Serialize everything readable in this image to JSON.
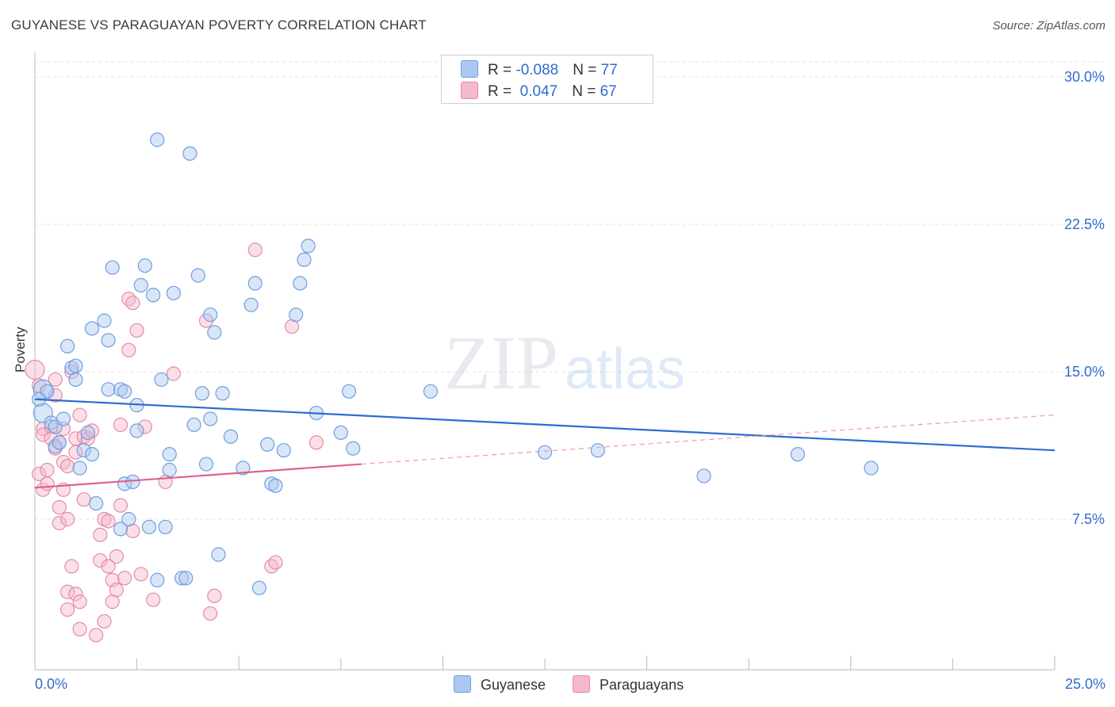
{
  "title": "GUYANESE VS PARAGUAYAN POVERTY CORRELATION CHART",
  "source": "Source: ZipAtlas.com",
  "watermark": {
    "zip": "ZIP",
    "atlas": "atlas"
  },
  "legend": {
    "rows": [
      {
        "r_label": "R = ",
        "r_value": "-0.088",
        "n_label": "N = ",
        "n_value": "77",
        "color": "#aac8f0"
      },
      {
        "r_label": "R = ",
        "r_value": " 0.047",
        "n_label": "N = ",
        "n_value": "67",
        "color": "#f5b8cc"
      }
    ]
  },
  "bottom_legend": [
    {
      "label": "Guyanese",
      "color": "#aac8f0"
    },
    {
      "label": "Paraguayans",
      "color": "#f5b8cc"
    }
  ],
  "chart_data": {
    "type": "scatter",
    "title": "GUYANESE VS PARAGUAYAN POVERTY CORRELATION CHART",
    "xlabel": "",
    "ylabel": "Poverty",
    "xlim": [
      0,
      25
    ],
    "ylim": [
      0,
      31
    ],
    "x_ticks": [
      "0.0%",
      "25.0%"
    ],
    "y_ticks": [
      {
        "value": 7.5,
        "label": "7.5%"
      },
      {
        "value": 15.0,
        "label": "15.0%"
      },
      {
        "value": 22.5,
        "label": "22.5%"
      },
      {
        "value": 30.0,
        "label": "30.0%"
      }
    ],
    "grid": "horizontal dashed",
    "legend_position": "top-center",
    "series": [
      {
        "name": "Guyanese",
        "color": "#6e9fe0",
        "fill": "#aac8f0",
        "trend": {
          "x0": 0,
          "y0": 13.6,
          "x1": 25,
          "y1": 11.0,
          "color": "#2f6ccf"
        },
        "points": [
          [
            0.2,
            12.9
          ],
          [
            0.2,
            14.1
          ],
          [
            0.4,
            12.4
          ],
          [
            0.5,
            12.2
          ],
          [
            0.5,
            11.2
          ],
          [
            0.6,
            11.4
          ],
          [
            0.7,
            12.6
          ],
          [
            0.8,
            16.3
          ],
          [
            0.9,
            15.2
          ],
          [
            1.0,
            14.6
          ],
          [
            1.0,
            15.3
          ],
          [
            1.1,
            10.1
          ],
          [
            1.2,
            11.0
          ],
          [
            1.3,
            11.9
          ],
          [
            1.4,
            10.8
          ],
          [
            1.4,
            17.2
          ],
          [
            1.5,
            8.3
          ],
          [
            1.7,
            17.6
          ],
          [
            1.8,
            16.6
          ],
          [
            1.9,
            20.3
          ],
          [
            1.8,
            14.1
          ],
          [
            2.1,
            14.1
          ],
          [
            2.2,
            14.0
          ],
          [
            2.1,
            7.0
          ],
          [
            2.2,
            9.3
          ],
          [
            2.3,
            7.5
          ],
          [
            2.4,
            9.4
          ],
          [
            2.5,
            12.0
          ],
          [
            2.5,
            13.3
          ],
          [
            2.6,
            19.4
          ],
          [
            2.7,
            20.4
          ],
          [
            2.8,
            7.1
          ],
          [
            2.9,
            18.9
          ],
          [
            3.0,
            4.4
          ],
          [
            3.0,
            26.8
          ],
          [
            3.1,
            14.6
          ],
          [
            3.2,
            7.1
          ],
          [
            3.3,
            10.0
          ],
          [
            3.3,
            10.8
          ],
          [
            3.4,
            19.0
          ],
          [
            3.6,
            4.5
          ],
          [
            3.7,
            4.5
          ],
          [
            3.8,
            26.1
          ],
          [
            3.9,
            12.3
          ],
          [
            4.0,
            19.9
          ],
          [
            4.1,
            13.9
          ],
          [
            4.2,
            10.3
          ],
          [
            4.3,
            17.9
          ],
          [
            4.3,
            12.6
          ],
          [
            4.4,
            17.0
          ],
          [
            4.5,
            5.7
          ],
          [
            4.6,
            13.9
          ],
          [
            4.8,
            11.7
          ],
          [
            5.1,
            10.1
          ],
          [
            5.3,
            18.4
          ],
          [
            5.4,
            19.5
          ],
          [
            5.5,
            4.0
          ],
          [
            5.7,
            11.3
          ],
          [
            5.8,
            9.3
          ],
          [
            5.9,
            9.2
          ],
          [
            6.1,
            11.0
          ],
          [
            6.4,
            17.9
          ],
          [
            6.5,
            19.5
          ],
          [
            6.6,
            20.7
          ],
          [
            6.7,
            21.4
          ],
          [
            6.9,
            12.9
          ],
          [
            7.5,
            11.9
          ],
          [
            7.7,
            14.0
          ],
          [
            7.8,
            11.1
          ],
          [
            9.7,
            14.0
          ],
          [
            12.5,
            10.9
          ],
          [
            13.8,
            11.0
          ],
          [
            16.4,
            9.7
          ],
          [
            18.7,
            10.8
          ],
          [
            20.5,
            10.1
          ],
          [
            0.3,
            14.0
          ],
          [
            0.1,
            13.6
          ]
        ]
      },
      {
        "name": "Paraguayans",
        "color": "#e68aa8",
        "fill": "#f5b8cc",
        "trend": {
          "x0": 0,
          "y0": 9.1,
          "x1": 8.0,
          "y1": 10.3,
          "color": "#e05f8c"
        },
        "trend_extension": {
          "x0": 8.0,
          "y0": 10.3,
          "x1": 25,
          "y1": 12.8
        },
        "points": [
          [
            0.0,
            15.1
          ],
          [
            0.1,
            14.3
          ],
          [
            0.1,
            9.8
          ],
          [
            0.2,
            12.1
          ],
          [
            0.2,
            11.8
          ],
          [
            0.2,
            9.0
          ],
          [
            0.3,
            10.0
          ],
          [
            0.3,
            9.3
          ],
          [
            0.4,
            12.2
          ],
          [
            0.4,
            11.6
          ],
          [
            0.5,
            14.6
          ],
          [
            0.5,
            11.1
          ],
          [
            0.5,
            13.8
          ],
          [
            0.6,
            11.4
          ],
          [
            0.6,
            8.1
          ],
          [
            0.6,
            7.3
          ],
          [
            0.7,
            9.0
          ],
          [
            0.7,
            10.4
          ],
          [
            0.7,
            12.1
          ],
          [
            0.8,
            7.5
          ],
          [
            0.8,
            10.2
          ],
          [
            0.8,
            2.9
          ],
          [
            0.8,
            3.8
          ],
          [
            0.9,
            5.1
          ],
          [
            0.9,
            15.0
          ],
          [
            1.0,
            3.7
          ],
          [
            1.0,
            11.6
          ],
          [
            1.0,
            10.9
          ],
          [
            1.1,
            12.8
          ],
          [
            1.1,
            1.9
          ],
          [
            1.1,
            3.3
          ],
          [
            1.2,
            11.7
          ],
          [
            1.2,
            8.5
          ],
          [
            1.3,
            11.6
          ],
          [
            1.4,
            12.0
          ],
          [
            1.5,
            1.6
          ],
          [
            1.6,
            6.7
          ],
          [
            1.6,
            5.4
          ],
          [
            1.7,
            2.3
          ],
          [
            1.7,
            7.5
          ],
          [
            1.8,
            5.1
          ],
          [
            1.8,
            7.4
          ],
          [
            1.9,
            4.4
          ],
          [
            1.9,
            3.3
          ],
          [
            2.0,
            3.9
          ],
          [
            2.0,
            5.6
          ],
          [
            2.1,
            8.2
          ],
          [
            2.1,
            12.3
          ],
          [
            2.2,
            4.5
          ],
          [
            2.3,
            18.7
          ],
          [
            2.3,
            16.1
          ],
          [
            2.4,
            6.9
          ],
          [
            2.4,
            18.5
          ],
          [
            2.5,
            17.1
          ],
          [
            2.6,
            4.7
          ],
          [
            2.7,
            12.2
          ],
          [
            2.9,
            3.4
          ],
          [
            3.2,
            9.4
          ],
          [
            3.4,
            14.9
          ],
          [
            4.2,
            17.6
          ],
          [
            4.3,
            2.7
          ],
          [
            4.4,
            3.6
          ],
          [
            5.4,
            21.2
          ],
          [
            5.8,
            5.1
          ],
          [
            5.9,
            5.3
          ],
          [
            6.3,
            17.3
          ],
          [
            6.9,
            11.4
          ]
        ]
      }
    ]
  }
}
